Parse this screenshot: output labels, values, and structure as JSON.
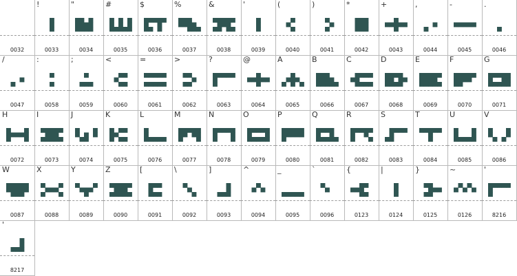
{
  "sheet": {
    "colors": {
      "glyph": "#2f5552",
      "grid": "#b9b9b9",
      "baseline": "#9a9a9a"
    },
    "cells": [
      {
        "char": "",
        "code": "0032",
        "glyph": []
      },
      {
        "char": "!",
        "code": "0033",
        "glyph": [
          "..#..",
          "..#..",
          "..#.."
        ]
      },
      {
        "char": "\"",
        "code": "0034",
        "glyph": [
          "##.#.",
          "####.",
          "####."
        ]
      },
      {
        "char": "#",
        "code": "0035",
        "glyph": [
          "#.#.#",
          "#.#.#",
          "#####"
        ]
      },
      {
        "char": "$",
        "code": "0036",
        "glyph": [
          "#####",
          "#..#.",
          "##.#."
        ]
      },
      {
        "char": "%",
        "code": "0037",
        "glyph": [
          "###..",
          "####.",
          "..###"
        ]
      },
      {
        "char": "&",
        "code": "0038",
        "glyph": [
          "#####",
          ".###.",
          "##.##"
        ]
      },
      {
        "char": "'",
        "code": "0039",
        "glyph": [
          "..#..",
          "..#..",
          "..#.."
        ]
      },
      {
        "char": "(",
        "code": "0040",
        "glyph": [
          "..#..",
          ".#...",
          "..#.."
        ]
      },
      {
        "char": ")",
        "code": "0041",
        "glyph": [
          "..#..",
          "...#.",
          "..#.."
        ]
      },
      {
        "char": "*",
        "code": "0042",
        "glyph": [
          ".###.",
          ".###.",
          ".###."
        ]
      },
      {
        "char": "+",
        "code": "0043",
        "glyph": [
          "..#..",
          "#####",
          "..#.."
        ]
      },
      {
        "char": ",",
        "code": "0044",
        "glyph": [
          ".....",
          "...#.",
          ".#..."
        ]
      },
      {
        "char": "-",
        "code": "0045",
        "glyph": [
          ".....",
          "#####",
          "....."
        ]
      },
      {
        "char": ".",
        "code": "0046",
        "glyph": [
          ".....",
          ".....",
          "..#.."
        ]
      },
      {
        "char": "/",
        "code": "0047",
        "glyph": [
          ".....",
          "...#.",
          ".#..."
        ]
      },
      {
        "char": ":",
        "code": "0058",
        "glyph": [
          "..#..",
          ".....",
          "..#.."
        ]
      },
      {
        "char": ";",
        "code": "0059",
        "glyph": [
          "..#..",
          ".....",
          ".###."
        ]
      },
      {
        "char": "<",
        "code": "0060",
        "glyph": [
          "..##.",
          ".#...",
          "..##."
        ]
      },
      {
        "char": "=",
        "code": "0061",
        "glyph": [
          "#####",
          ".....",
          "#####"
        ]
      },
      {
        "char": ">",
        "code": "0062",
        "glyph": [
          ".##..",
          "...#.",
          ".##.."
        ]
      },
      {
        "char": "?",
        "code": "0063",
        "glyph": [
          "#####",
          "#....",
          "#...."
        ]
      },
      {
        "char": "@",
        "code": "0064",
        "glyph": [
          "..#..",
          "#####",
          "..#.."
        ]
      },
      {
        "char": "A",
        "code": "0065",
        "glyph": [
          "..#..",
          ".###.",
          "#.#.#"
        ]
      },
      {
        "char": "B",
        "code": "0066",
        "glyph": [
          "###..",
          "####.",
          "#####"
        ]
      },
      {
        "char": "C",
        "code": "0067",
        "glyph": [
          ".####",
          "##...",
          ".####"
        ]
      },
      {
        "char": "D",
        "code": "0068",
        "glyph": [
          "####.",
          "##.##",
          "####."
        ]
      },
      {
        "char": "E",
        "code": "0069",
        "glyph": [
          "#####",
          "####.",
          "#####"
        ]
      },
      {
        "char": "F",
        "code": "0070",
        "glyph": [
          "#####",
          "####.",
          "##..."
        ]
      },
      {
        "char": "G",
        "code": "0071",
        "glyph": [
          "#####",
          "#..##",
          "#####"
        ]
      },
      {
        "char": "H",
        "code": "0072",
        "glyph": [
          "#...#",
          "#####",
          "#...#"
        ]
      },
      {
        "char": "I",
        "code": "0073",
        "glyph": [
          "#####",
          ".###.",
          "#####"
        ]
      },
      {
        "char": "J",
        "code": "0074",
        "glyph": [
          "#...#",
          "#.#.#",
          ".##.."
        ]
      },
      {
        "char": "K",
        "code": "0075",
        "glyph": [
          "#.##.",
          "##...",
          "#.##."
        ]
      },
      {
        "char": "L",
        "code": "0076",
        "glyph": [
          "#....",
          "#....",
          "#####"
        ]
      },
      {
        "char": "M",
        "code": "0077",
        "glyph": [
          "#####",
          "##.##",
          "#...#"
        ]
      },
      {
        "char": "N",
        "code": "0078",
        "glyph": [
          "#####",
          "#...#",
          "#...#"
        ]
      },
      {
        "char": "O",
        "code": "0079",
        "glyph": [
          "#####",
          "#...#",
          "#####"
        ]
      },
      {
        "char": "P",
        "code": "0080",
        "glyph": [
          "#####",
          "#####",
          "#...."
        ]
      },
      {
        "char": "Q",
        "code": "0081",
        "glyph": [
          "####.",
          "#..#.",
          "#####"
        ]
      },
      {
        "char": "R",
        "code": "0082",
        "glyph": [
          "#####",
          "#..#.",
          "#...#"
        ]
      },
      {
        "char": "S",
        "code": "0083",
        "glyph": [
          ".####",
          ".#...",
          "##..."
        ]
      },
      {
        "char": "T",
        "code": "0084",
        "glyph": [
          "#####",
          "..#..",
          "..#.."
        ]
      },
      {
        "char": "U",
        "code": "0085",
        "glyph": [
          "#...#",
          "#...#",
          "#####"
        ]
      },
      {
        "char": "V",
        "code": "0086",
        "glyph": [
          "#...#",
          "#...#",
          ".#.#."
        ]
      },
      {
        "char": "W",
        "code": "0087",
        "glyph": [
          "#####",
          "#####",
          ".###."
        ]
      },
      {
        "char": "X",
        "code": "0088",
        "glyph": [
          "#...#",
          ".###.",
          "#...#"
        ]
      },
      {
        "char": "Y",
        "code": "0089",
        "glyph": [
          "#...#",
          ".###.",
          "..#.."
        ]
      },
      {
        "char": "Z",
        "code": "0090",
        "glyph": [
          "#####",
          ".###.",
          "#####"
        ]
      },
      {
        "char": "[",
        "code": "0091",
        "glyph": [
          ".###.",
          ".#...",
          ".###."
        ]
      },
      {
        "char": "\\",
        "code": "0092",
        "glyph": [
          ".#...",
          "..#..",
          "...#."
        ]
      },
      {
        "char": "]",
        "code": "0093",
        "glyph": [
          "...#.",
          "...#.",
          ".###."
        ]
      },
      {
        "char": "^",
        "code": "0094",
        "glyph": [
          "..#..",
          ".#.#.",
          "....."
        ]
      },
      {
        "char": "_",
        "code": "0095",
        "glyph": [
          ".....",
          ".....",
          "#####"
        ]
      },
      {
        "char": "`",
        "code": "0096",
        "glyph": [
          ".#...",
          "..#..",
          "....."
        ]
      },
      {
        "char": "{",
        "code": "0123",
        "glyph": [
          "..##.",
          "###..",
          "..##."
        ]
      },
      {
        "char": "|",
        "code": "0124",
        "glyph": [
          "..#..",
          "..#..",
          "..#.."
        ]
      },
      {
        "char": "}",
        "code": "0125",
        "glyph": [
          ".##..",
          "..###",
          ".##.."
        ]
      },
      {
        "char": "~",
        "code": "0126",
        "glyph": [
          ".#.#.",
          "#.#.#",
          "....."
        ]
      },
      {
        "char": "'",
        "code": "8216",
        "glyph": [
          "#####",
          "#....",
          "#...."
        ]
      },
      {
        "char": "'",
        "code": "8217",
        "glyph": [
          "...#.",
          "...#.",
          ".###."
        ]
      }
    ]
  }
}
